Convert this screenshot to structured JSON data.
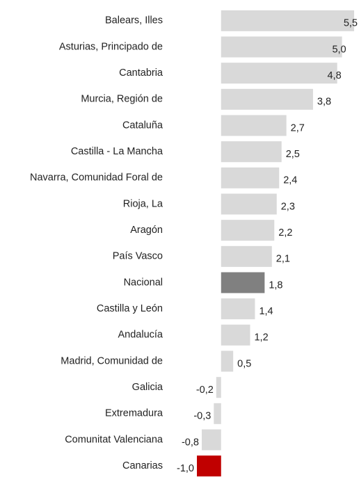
{
  "chart_data": {
    "type": "barh",
    "categories": [
      "Balears, Illes",
      "Asturias, Principado de",
      "Cantabria",
      "Murcia, Región de",
      "Cataluña",
      "Castilla - La Mancha",
      "Navarra, Comunidad Foral de",
      "Rioja, La",
      "Aragón",
      "País Vasco",
      "Nacional",
      "Castilla y León",
      "Andalucía",
      "Madrid, Comunidad de",
      "Galicia",
      "Extremadura",
      "Comunitat Valenciana",
      "Canarias"
    ],
    "values": [
      5.5,
      5.0,
      4.8,
      3.8,
      2.7,
      2.5,
      2.4,
      2.3,
      2.2,
      2.1,
      1.8,
      1.4,
      1.2,
      0.5,
      -0.2,
      -0.3,
      -0.8,
      -1.0
    ],
    "value_labels": [
      "5,5",
      "5,0",
      "4,8",
      "3,8",
      "2,7",
      "2,5",
      "2,4",
      "2,3",
      "2,2",
      "2,1",
      "1,8",
      "1,4",
      "1,2",
      "0,5",
      "-0,2",
      "-0,3",
      "-0,8",
      "-1,0"
    ],
    "colors": [
      "#d9d9d9",
      "#d9d9d9",
      "#d9d9d9",
      "#d9d9d9",
      "#d9d9d9",
      "#d9d9d9",
      "#d9d9d9",
      "#d9d9d9",
      "#d9d9d9",
      "#d9d9d9",
      "#808080",
      "#d9d9d9",
      "#d9d9d9",
      "#d9d9d9",
      "#d9d9d9",
      "#d9d9d9",
      "#d9d9d9",
      "#c00000"
    ],
    "xlim": [
      -1.0,
      5.5
    ]
  }
}
